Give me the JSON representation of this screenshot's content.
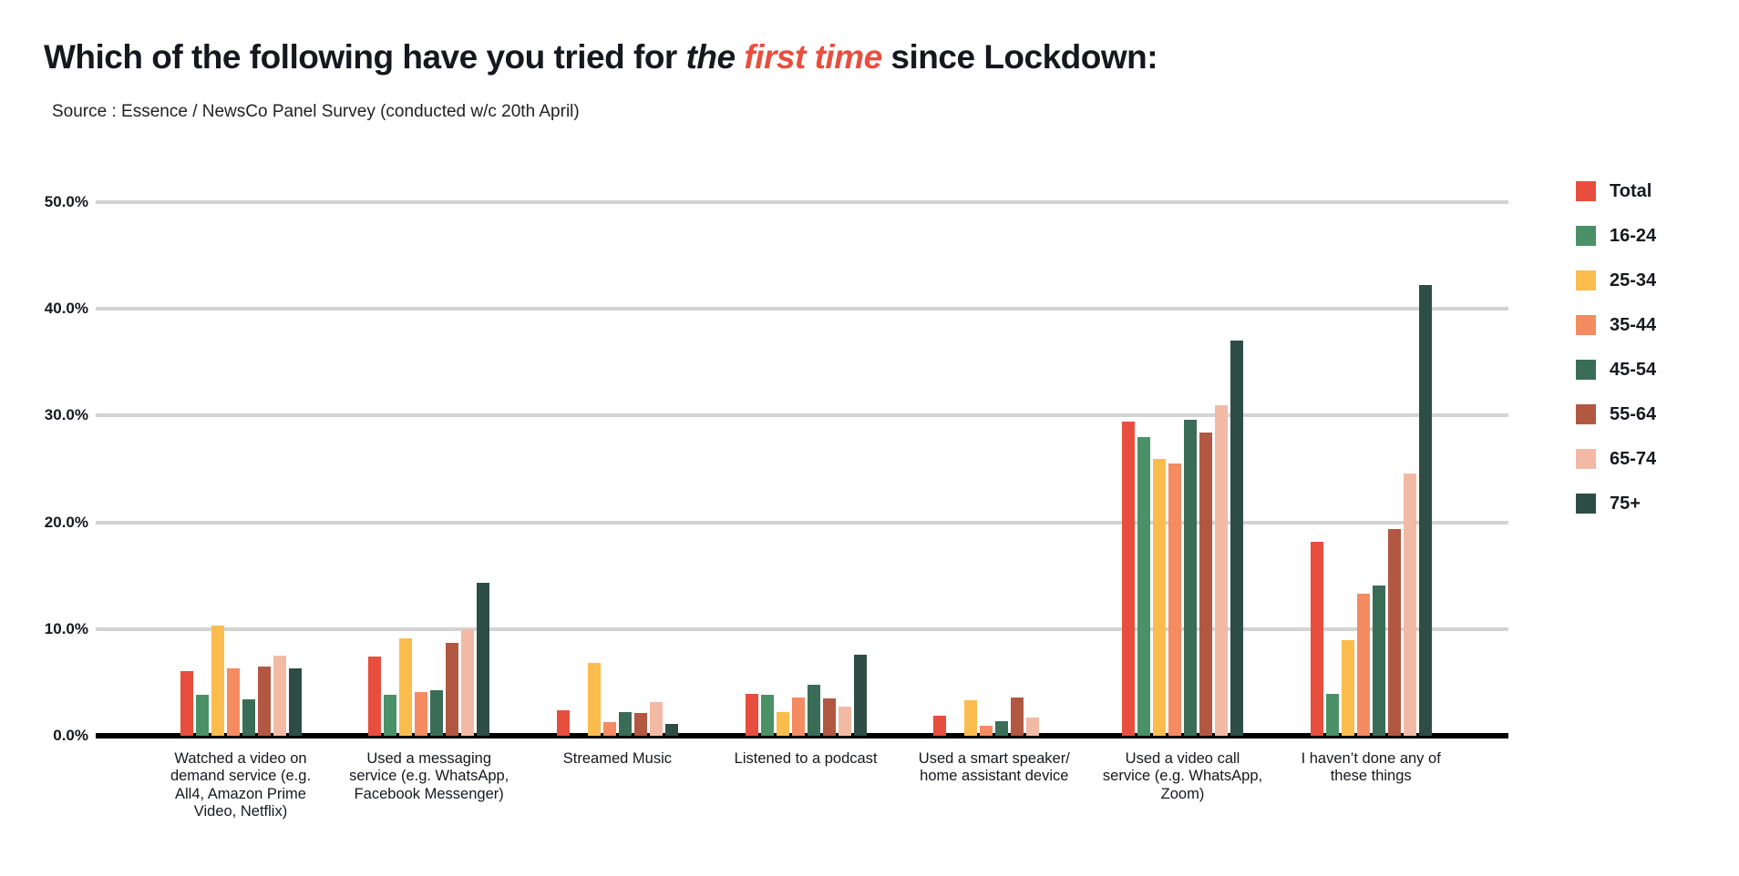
{
  "title": {
    "part1": "Which of the following have you tried for ",
    "part2_italic": "the",
    "part3_red": "first time",
    "part4": " since Lockdown:"
  },
  "source": "Source : Essence / NewsCo Panel Survey (conducted w/c 20th April)",
  "colors": {
    "accent_red": "#e84e3d",
    "gridline": "#d3d3d3",
    "baseline": "#000000",
    "text": "#16181d"
  },
  "chart_data": {
    "type": "bar",
    "title": "Which of the following have you tried for the first time since Lockdown:",
    "subtitle": "Source : Essence / NewsCo Panel Survey (conducted w/c 20th April)",
    "categories": [
      "Watched a video on demand service (e.g. All4, Amazon Prime Video, Netflix)",
      "Used a messaging service (e.g. WhatsApp, Facebook Messenger)",
      "Streamed Music",
      "Listened to a podcast",
      "Used a smart speaker/ home assistant device",
      "Used a video call service (e.g. WhatsApp, Zoom)",
      "I haven’t done any of these things"
    ],
    "series": [
      {
        "name": "Total",
        "color": "#e84e3d",
        "values": [
          6.1,
          7.4,
          2.4,
          3.9,
          1.9,
          29.4,
          18.2
        ]
      },
      {
        "name": "16-24",
        "color": "#4a9167",
        "values": [
          3.8,
          3.8,
          0,
          3.8,
          0,
          28.0,
          3.9
        ]
      },
      {
        "name": "25-34",
        "color": "#fabd4d",
        "values": [
          10.3,
          9.1,
          6.8,
          2.2,
          3.3,
          25.9,
          9.0
        ]
      },
      {
        "name": "35-44",
        "color": "#f58b61",
        "values": [
          6.3,
          4.1,
          1.3,
          3.6,
          0.9,
          25.5,
          13.3
        ]
      },
      {
        "name": "45-54",
        "color": "#396d57",
        "values": [
          3.4,
          4.3,
          2.2,
          4.8,
          1.4,
          29.6,
          14.1
        ]
      },
      {
        "name": "55-64",
        "color": "#b25742",
        "values": [
          6.5,
          8.7,
          2.1,
          3.5,
          3.6,
          28.4,
          19.4
        ]
      },
      {
        "name": "65-74",
        "color": "#f2baa5",
        "values": [
          7.5,
          10.0,
          3.2,
          2.7,
          1.7,
          31.0,
          24.6
        ]
      },
      {
        "name": "75+",
        "color": "#2e4d45",
        "values": [
          6.3,
          14.3,
          1.1,
          7.6,
          0,
          37.0,
          42.2
        ]
      }
    ],
    "ylabel": "",
    "xlabel": "",
    "ylim": [
      0,
      50
    ],
    "ytick_labels": [
      "0.0%",
      "10.0%",
      "20.0%",
      "30.0%",
      "40.0%",
      "50.0%"
    ],
    "ytick_values": [
      0,
      10,
      20,
      30,
      40,
      50
    ],
    "grid": true,
    "legend_position": "right"
  }
}
